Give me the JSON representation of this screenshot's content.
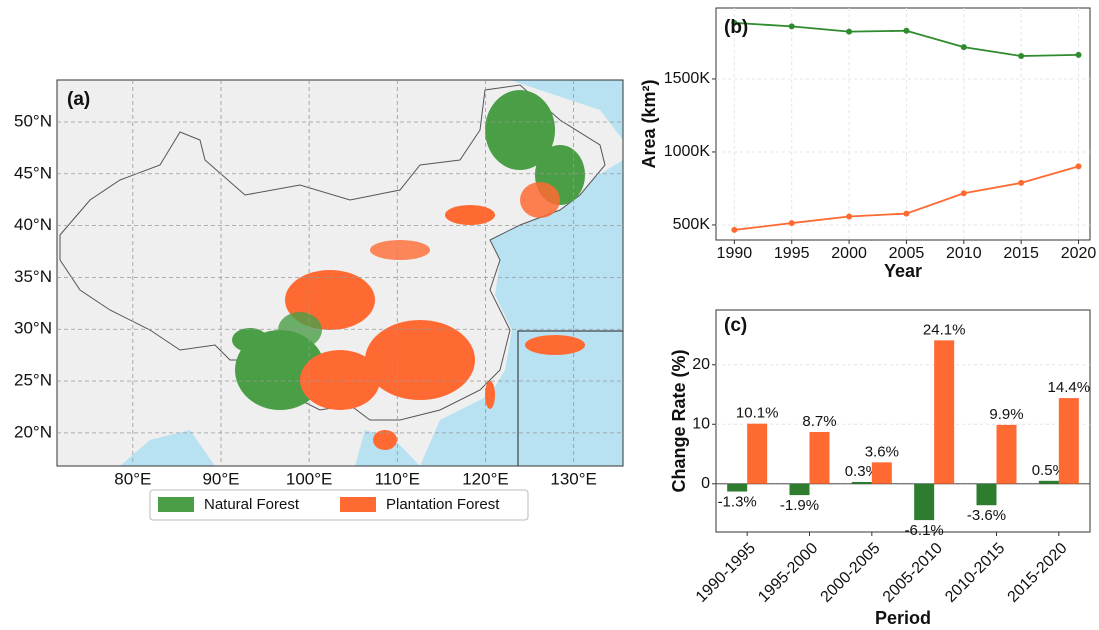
{
  "chart_data": [
    {
      "type": "map",
      "title": "(a)",
      "xlim": [
        71.4,
        135.6
      ],
      "ylim": [
        16.8,
        54.05
      ],
      "xticks": [
        {
          "value": 80,
          "label": "80°E"
        },
        {
          "value": 90,
          "label": "90°E"
        },
        {
          "value": 100,
          "label": "100°E"
        },
        {
          "value": 110,
          "label": "110°E"
        },
        {
          "value": 120,
          "label": "120°E"
        },
        {
          "value": 130,
          "label": "130°E"
        }
      ],
      "yticks": [
        {
          "value": 20,
          "label": "20°N"
        },
        {
          "value": 25,
          "label": "25°N"
        },
        {
          "value": 30,
          "label": "30°N"
        },
        {
          "value": 35,
          "label": "35°N"
        },
        {
          "value": 40,
          "label": "40°N"
        },
        {
          "value": 45,
          "label": "45°N"
        },
        {
          "value": 50,
          "label": "50°N"
        }
      ],
      "grid": true,
      "series": [
        {
          "name": "Natural Forest",
          "color": "#4a9e46"
        },
        {
          "name": "Plantation Forest",
          "color": "#ff6a33"
        }
      ]
    },
    {
      "type": "line",
      "title": "(b)",
      "x_label": "Year",
      "y_label": "Area (km²)",
      "x": [
        1990,
        1995,
        2000,
        2005,
        2010,
        2015,
        2020
      ],
      "xlim": [
        1988.4,
        2021
      ],
      "xticks": [
        1990,
        1995,
        2000,
        2005,
        2010,
        2015,
        2020
      ],
      "ylim": [
        397000,
        1986000
      ],
      "yticks": [
        {
          "value": 500000,
          "label": "500K"
        },
        {
          "value": 1000000,
          "label": "1000K"
        },
        {
          "value": 1500000,
          "label": "1500K"
        }
      ],
      "grid": true,
      "series": [
        {
          "name": "Natural Forest",
          "color": "#2e8b2e",
          "values": [
            1884000,
            1860000,
            1824000,
            1830000,
            1718000,
            1657000,
            1665000
          ]
        },
        {
          "name": "Plantation Forest",
          "color": "#ff6a33",
          "values": [
            466000,
            513000,
            558000,
            578000,
            717000,
            788000,
            901000
          ]
        }
      ]
    },
    {
      "type": "bar",
      "title": "(c)",
      "x_label": "Period",
      "y_label": "Change Rate (%)",
      "categories": [
        "1990-1995",
        "1995-2000",
        "2000-2005",
        "2005-2010",
        "2010-2015",
        "2015-2020"
      ],
      "ylim": [
        -8.1,
        29.2
      ],
      "yticks": [
        0,
        10,
        20
      ],
      "grid": true,
      "series": [
        {
          "name": "Natural Forest",
          "color": "#2e7d2e",
          "values": [
            -1.3,
            -1.9,
            0.3,
            -6.1,
            -3.6,
            0.5
          ],
          "value_labels": [
            "-1.3%",
            "-1.9%",
            "0.3%",
            "-6.1%",
            "-3.6%",
            "0.5%"
          ]
        },
        {
          "name": "Plantation Forest",
          "color": "#ff6a33",
          "values": [
            10.1,
            8.7,
            3.6,
            24.1,
            9.9,
            14.4
          ],
          "value_labels": [
            "10.1%",
            "8.7%",
            "3.6%",
            "24.1%",
            "9.9%",
            "14.4%"
          ]
        }
      ]
    }
  ]
}
